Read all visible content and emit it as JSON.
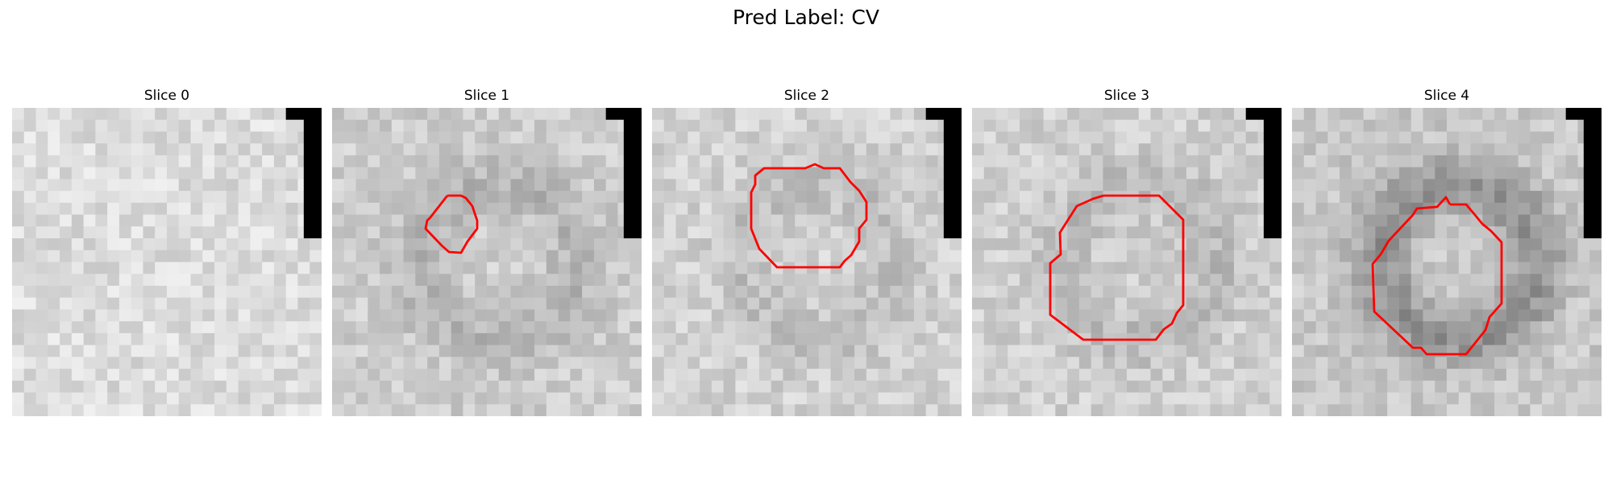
{
  "figure": {
    "suptitle": "Pred Label: CV",
    "contour_color": "#ff0000",
    "mask_color": "#000000",
    "colormap": "gray",
    "grid_size": 26
  },
  "panels": [
    {
      "title": "Slice 0",
      "has_contour": false,
      "base_gray": 220,
      "ring_darkening": 0
    },
    {
      "title": "Slice 1",
      "has_contour": true,
      "base_gray": 205,
      "ring_darkening": 25
    },
    {
      "title": "Slice 2",
      "has_contour": true,
      "base_gray": 210,
      "ring_darkening": 20
    },
    {
      "title": "Slice 3",
      "has_contour": true,
      "base_gray": 208,
      "ring_darkening": 22
    },
    {
      "title": "Slice 4",
      "has_contour": true,
      "base_gray": 200,
      "ring_darkening": 55
    }
  ]
}
